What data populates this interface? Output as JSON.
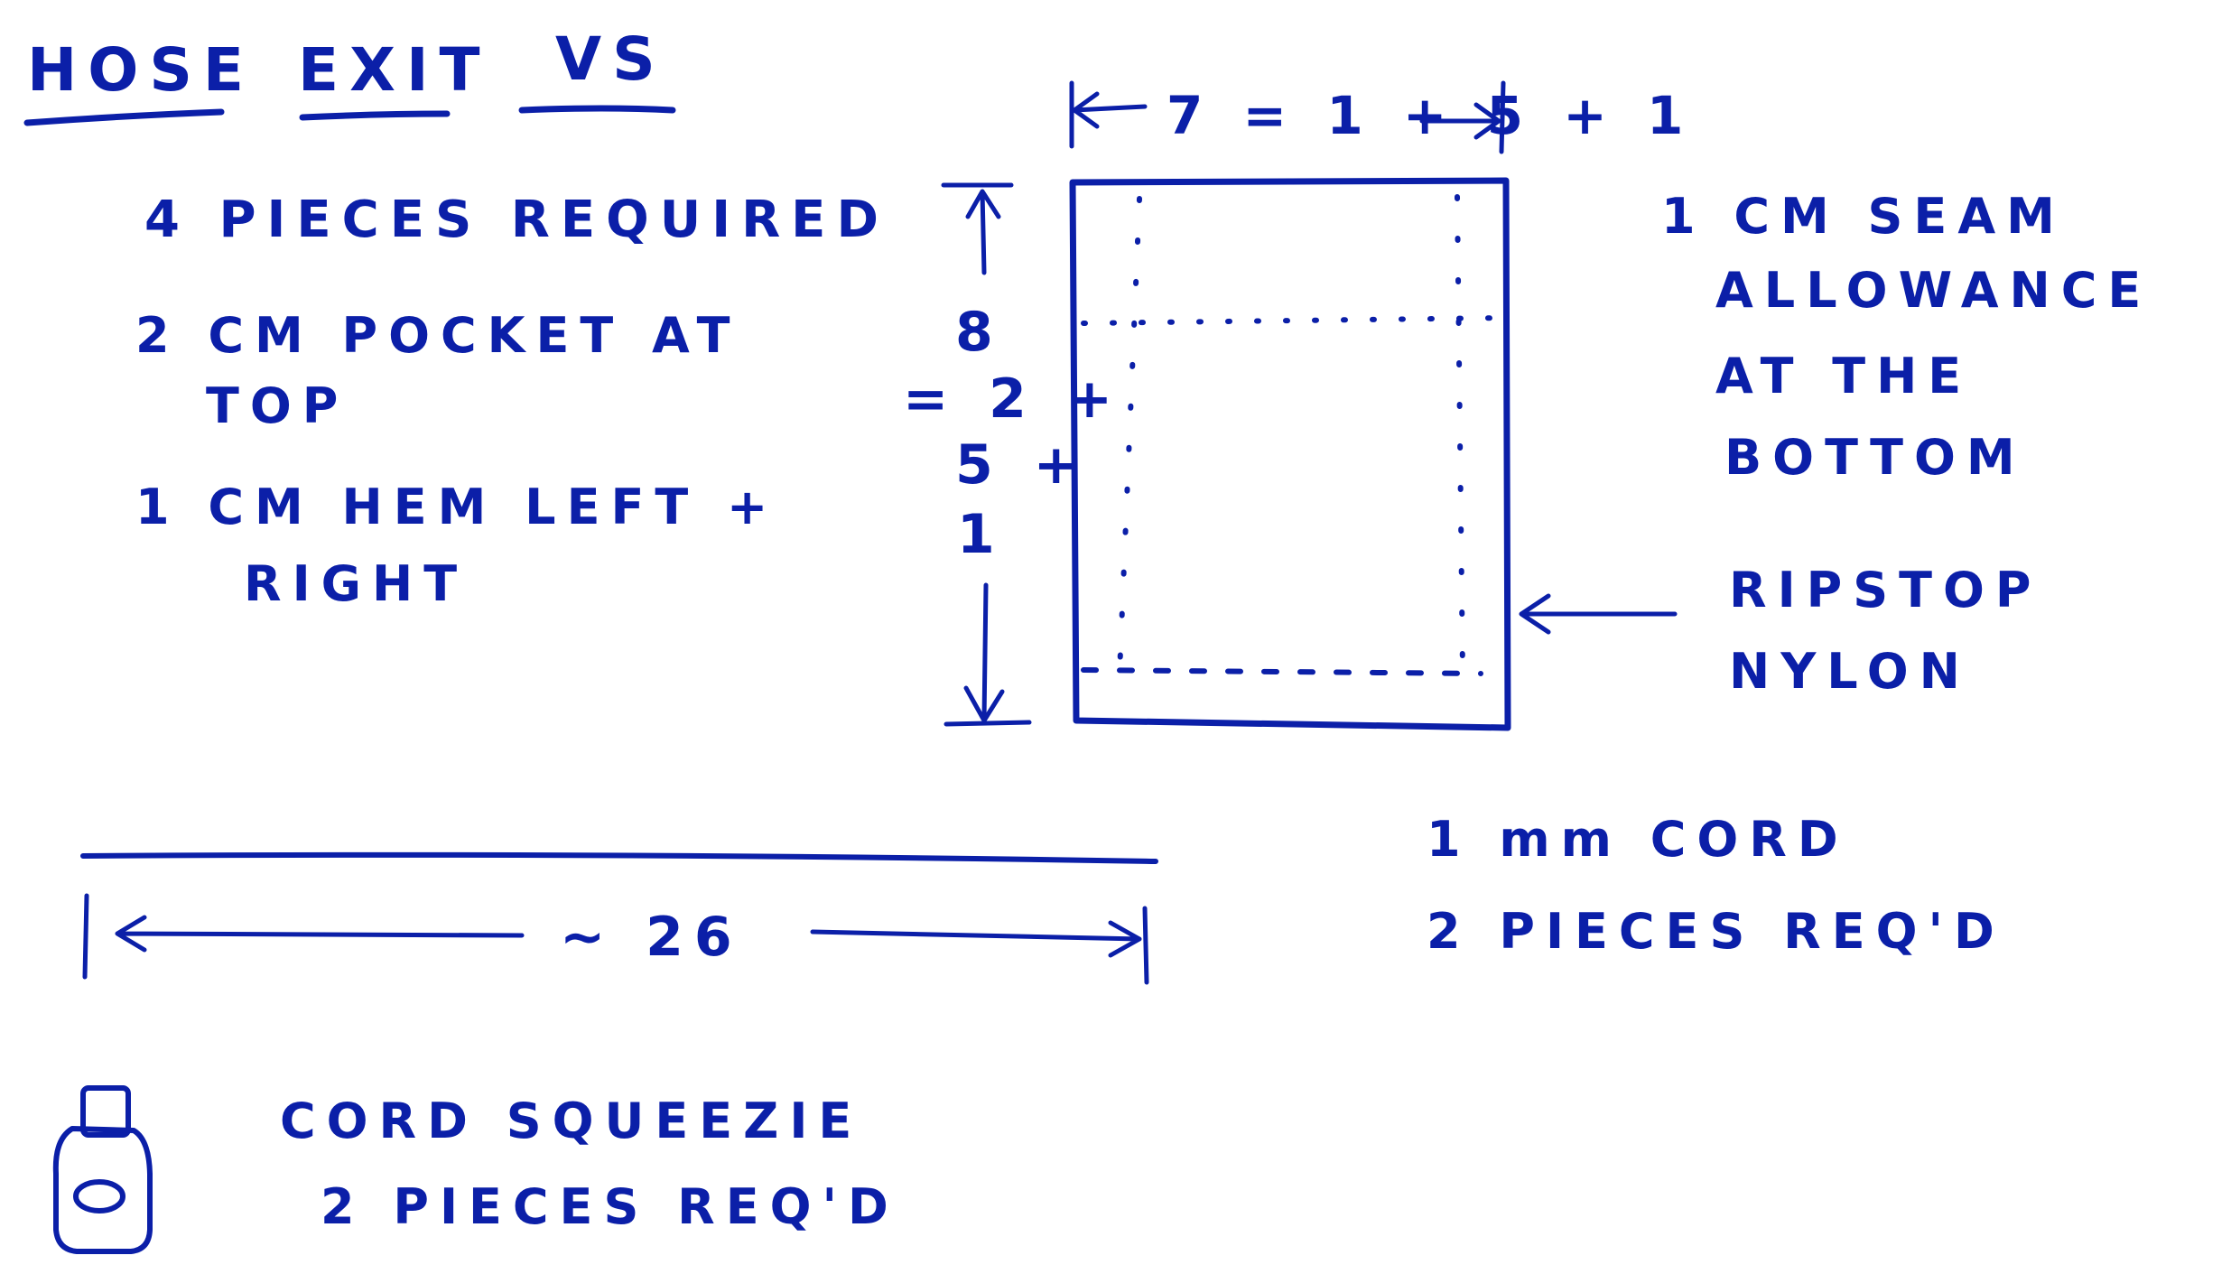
{
  "ink_color": "#0b1fa8",
  "title": {
    "words": [
      "HOSE",
      "EXIT",
      "VS"
    ]
  },
  "left_notes": {
    "pieces": "4 PIECES REQUIRED",
    "pocket_line1": "2 CM POCKET AT",
    "pocket_line2": "TOP",
    "hem_line1": "1 CM HEM LEFT +",
    "hem_line2": "RIGHT"
  },
  "dimensions": {
    "width_label": "7 = 1 + 5 + 1",
    "height_top": "8",
    "height_line2": "= 2 +",
    "height_line3": "5 +",
    "height_line4": "1"
  },
  "right_notes": {
    "seam_line1": "1 CM SEAM",
    "seam_line2": "ALLOWANCE",
    "seam_line3": "AT THE",
    "seam_line4": "BOTTOM",
    "material_line1": "RIPSTOP",
    "material_line2": "NYLON"
  },
  "cord": {
    "length_label": "~ 26",
    "title": "1 mm CORD",
    "qty": "2 PIECES REQ'D"
  },
  "squeezie": {
    "title": "CORD SQUEEZIE",
    "qty": "2 PIECES REQ'D",
    "icon": "cord-lock-icon"
  }
}
